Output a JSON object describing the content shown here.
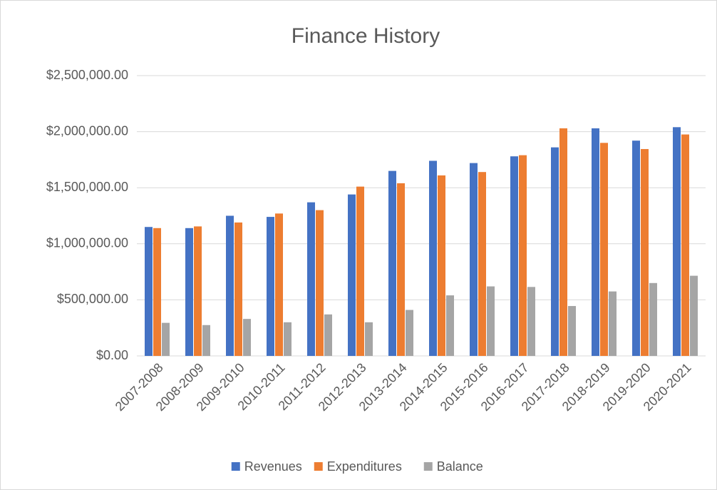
{
  "chart_data": {
    "type": "bar",
    "title": "Finance History",
    "categories": [
      "2007-2008",
      "2008-2009",
      "2009-2010",
      "2010-2011",
      "2011-2012",
      "2012-2013",
      "2013-2014",
      "2014-2015",
      "2015-2016",
      "2016-2017",
      "2017-2018",
      "2018-2019",
      "2019-2020",
      "2020-2021"
    ],
    "series": [
      {
        "name": "Revenues",
        "color": "#4472c4",
        "values": [
          1150000,
          1140000,
          1250000,
          1240000,
          1370000,
          1440000,
          1650000,
          1740000,
          1720000,
          1780000,
          1860000,
          2030000,
          1920000,
          2040000
        ]
      },
      {
        "name": "Expenditures",
        "color": "#ed7d31",
        "values": [
          1140000,
          1155000,
          1190000,
          1270000,
          1300000,
          1510000,
          1540000,
          1610000,
          1640000,
          1790000,
          2030000,
          1900000,
          1845000,
          1975000
        ]
      },
      {
        "name": "Balance",
        "color": "#a5a5a5",
        "values": [
          295000,
          275000,
          330000,
          300000,
          370000,
          300000,
          410000,
          540000,
          620000,
          615000,
          445000,
          575000,
          650000,
          715000
        ]
      }
    ],
    "ylim": [
      0,
      2500000
    ],
    "yticks": [
      {
        "value": 0,
        "label": "$0.00"
      },
      {
        "value": 500000,
        "label": "$500,000.00"
      },
      {
        "value": 1000000,
        "label": "$1,000,000.00"
      },
      {
        "value": 1500000,
        "label": "$1,500,000.00"
      },
      {
        "value": 2000000,
        "label": "$2,000,000.00"
      },
      {
        "value": 2500000,
        "label": "$2,500,000.00"
      }
    ],
    "grid": true,
    "legend": "bottom"
  }
}
